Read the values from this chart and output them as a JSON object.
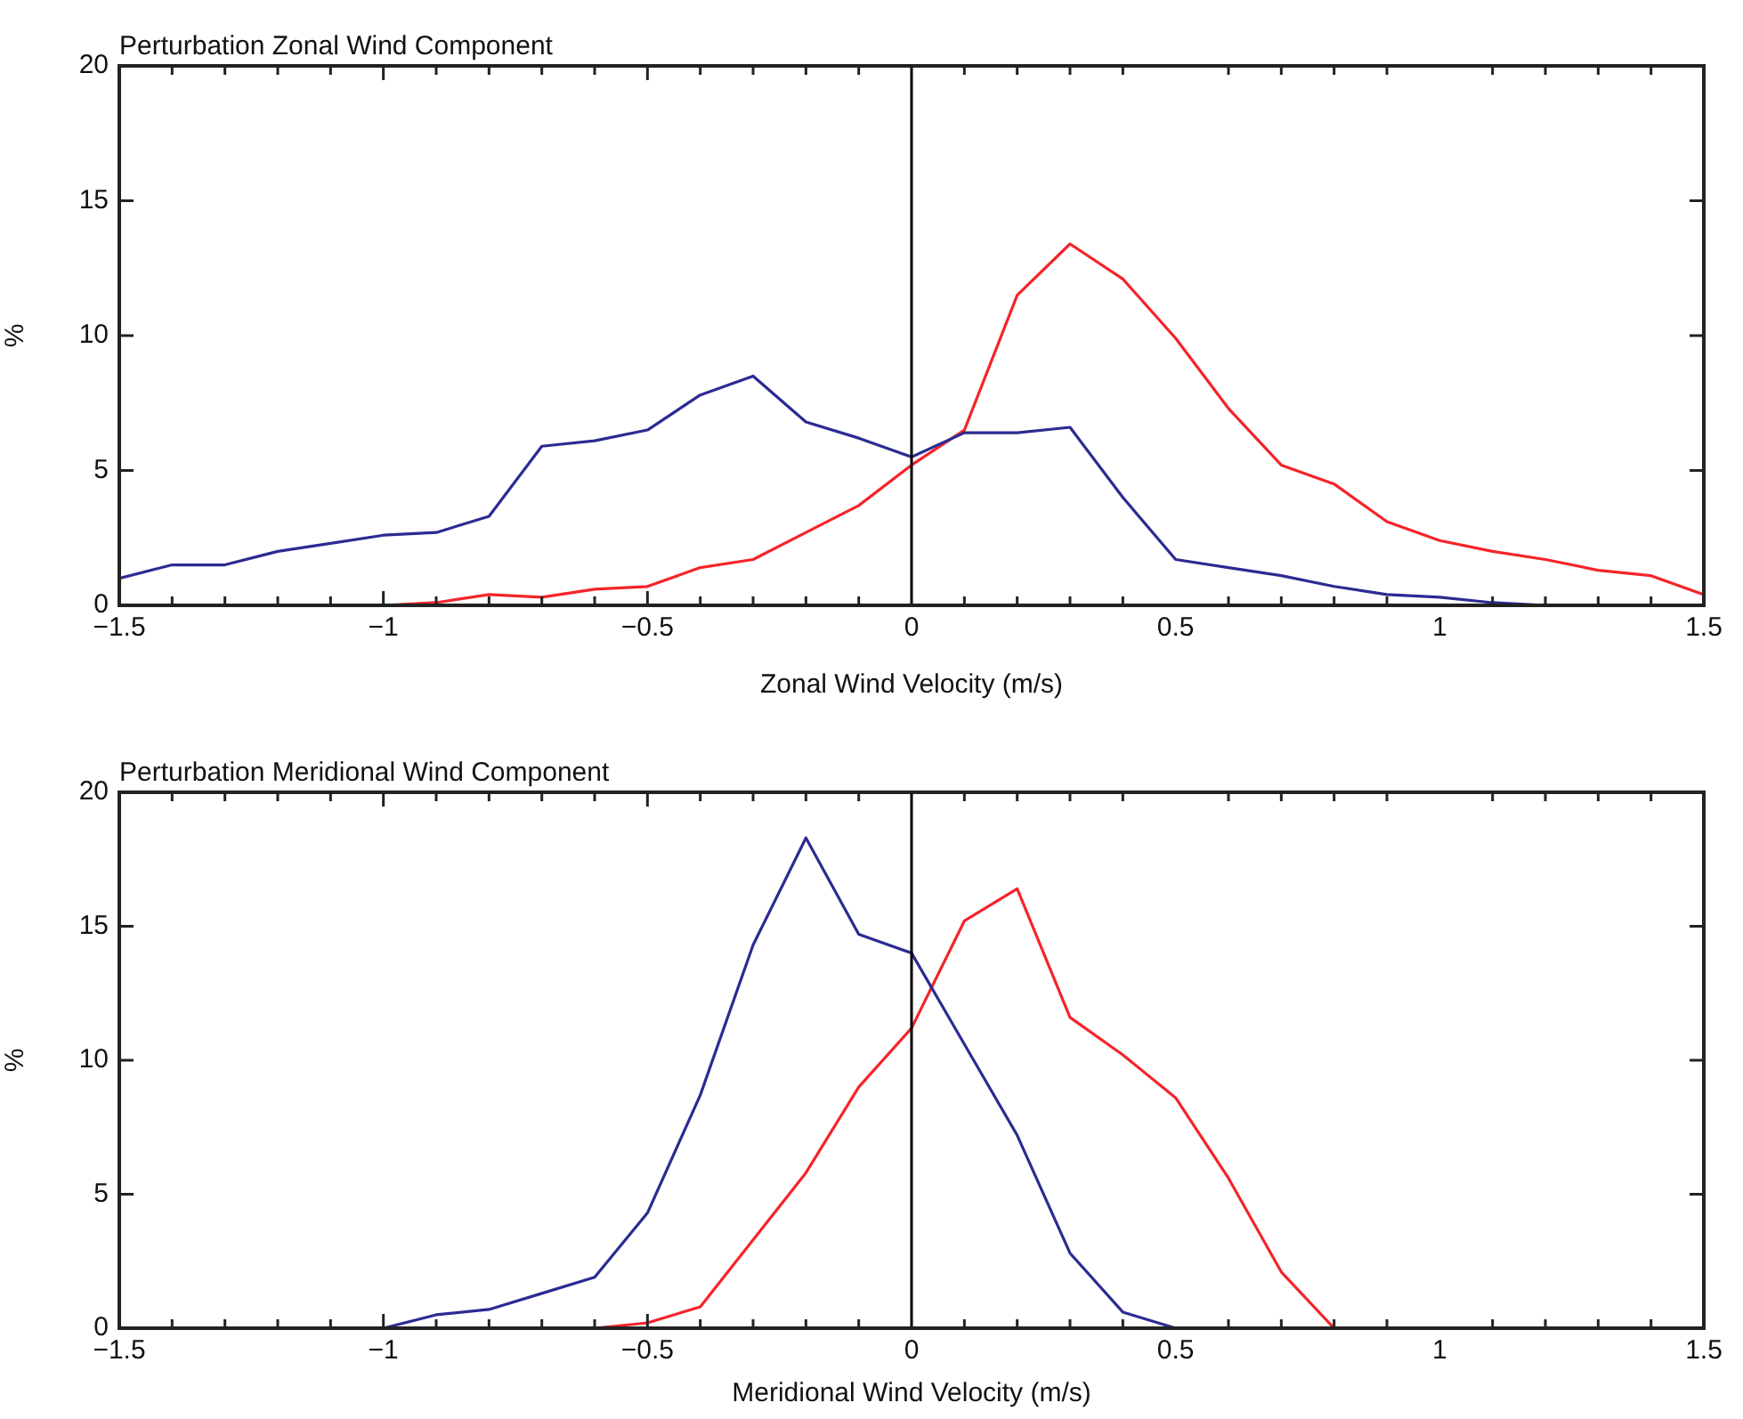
{
  "chart_data": [
    {
      "type": "line",
      "title": "Perturbation Zonal Wind Component",
      "xlabel": "Zonal Wind Velocity (m/s)",
      "ylabel": "%",
      "series": [
        {
          "color": "#2b2b92",
          "x": [
            -1.5,
            -1.4,
            -1.3,
            -1.2,
            -1.1,
            -1.0,
            -0.9,
            -0.8,
            -0.7,
            -0.6,
            -0.5,
            -0.4,
            -0.3,
            -0.2,
            -0.1,
            0,
            0.1,
            0.2,
            0.3,
            0.4,
            0.5,
            0.6,
            0.7,
            0.8,
            0.9,
            1.0,
            1.1,
            1.2
          ],
          "values": [
            1.0,
            1.5,
            1.5,
            2.0,
            2.3,
            2.6,
            2.7,
            3.3,
            5.9,
            6.1,
            6.5,
            7.8,
            8.5,
            6.8,
            6.2,
            5.5,
            6.4,
            6.4,
            6.6,
            4.0,
            1.7,
            1.4,
            1.1,
            0.7,
            0.4,
            0.3,
            0.1,
            0
          ]
        },
        {
          "color": "#f5242a",
          "x": [
            -1.0,
            -0.9,
            -0.8,
            -0.7,
            -0.6,
            -0.5,
            -0.4,
            -0.3,
            -0.2,
            -0.1,
            0,
            0.1,
            0.2,
            0.3,
            0.4,
            0.5,
            0.6,
            0.7,
            0.8,
            0.9,
            1.0,
            1.1,
            1.2,
            1.3,
            1.4,
            1.5
          ],
          "values": [
            0,
            0.1,
            0.4,
            0.3,
            0.6,
            0.7,
            1.4,
            1.7,
            2.7,
            3.7,
            5.2,
            6.5,
            11.5,
            13.4,
            12.1,
            9.9,
            7.3,
            5.2,
            4.5,
            3.1,
            2.4,
            2.0,
            1.7,
            1.3,
            1.1,
            0.4
          ]
        }
      ],
      "xlim": [
        -1.5,
        1.5
      ],
      "xticks": [
        {
          "value": -1.5,
          "label": "−1.5"
        },
        {
          "value": -1.4,
          "label": null
        },
        {
          "value": -1.3,
          "label": null
        },
        {
          "value": -1.2,
          "label": null
        },
        {
          "value": -1.1,
          "label": null
        },
        {
          "value": -1,
          "label": "−1"
        },
        {
          "value": -0.9,
          "label": null
        },
        {
          "value": -0.8,
          "label": null
        },
        {
          "value": -0.7,
          "label": null
        },
        {
          "value": -0.6,
          "label": null
        },
        {
          "value": -0.5,
          "label": "−0.5"
        },
        {
          "value": -0.4,
          "label": null
        },
        {
          "value": -0.3,
          "label": null
        },
        {
          "value": -0.2,
          "label": null
        },
        {
          "value": -0.1,
          "label": null
        },
        0,
        {
          "value": 0.1,
          "label": null
        },
        {
          "value": 0.2,
          "label": null
        },
        {
          "value": 0.3,
          "label": null
        },
        {
          "value": 0.4,
          "label": null
        },
        0.5,
        {
          "value": 0.6,
          "label": null
        },
        {
          "value": 0.7,
          "label": null
        },
        {
          "value": 0.8,
          "label": null
        },
        {
          "value": 0.9,
          "label": null
        },
        1,
        {
          "value": 1.1,
          "label": null
        },
        {
          "value": 1.2,
          "label": null
        },
        {
          "value": 1.3,
          "label": null
        },
        {
          "value": 1.4,
          "label": null
        },
        1.5
      ],
      "ylim": [
        0,
        20
      ],
      "yticks": [
        0,
        5,
        10,
        15,
        20
      ],
      "ref_lines": [
        {
          "axis": "x",
          "value": 0,
          "color": "#000000"
        }
      ],
      "grid": false,
      "legend": false,
      "marker": "none",
      "line_style": "solid"
    },
    {
      "type": "line",
      "title": "Perturbation Meridional Wind Component",
      "xlabel": "Meridional Wind Velocity (m/s)",
      "ylabel": "%",
      "series": [
        {
          "color": "#2b2b92",
          "x": [
            -1.0,
            -0.9,
            -0.8,
            -0.7,
            -0.6,
            -0.5,
            -0.4,
            -0.3,
            -0.2,
            -0.1,
            0,
            0.1,
            0.2,
            0.3,
            0.4,
            0.5
          ],
          "values": [
            0,
            0.5,
            0.7,
            1.3,
            1.9,
            4.3,
            8.7,
            14.3,
            18.3,
            14.7,
            14.0,
            10.6,
            7.2,
            2.8,
            0.6,
            0
          ]
        },
        {
          "color": "#f5242a",
          "x": [
            -0.6,
            -0.5,
            -0.4,
            -0.3,
            -0.2,
            -0.1,
            0,
            0.1,
            0.2,
            0.3,
            0.4,
            0.5,
            0.6,
            0.7,
            0.8
          ],
          "values": [
            0,
            0.2,
            0.8,
            3.3,
            5.8,
            9.0,
            11.2,
            15.2,
            16.4,
            11.6,
            10.2,
            8.6,
            5.6,
            2.1,
            0
          ]
        }
      ],
      "xlim": [
        -1.5,
        1.5
      ],
      "xticks": [
        {
          "value": -1.5,
          "label": "−1.5"
        },
        {
          "value": -1.4,
          "label": null
        },
        {
          "value": -1.3,
          "label": null
        },
        {
          "value": -1.2,
          "label": null
        },
        {
          "value": -1.1,
          "label": null
        },
        {
          "value": -1,
          "label": "−1"
        },
        {
          "value": -0.9,
          "label": null
        },
        {
          "value": -0.8,
          "label": null
        },
        {
          "value": -0.7,
          "label": null
        },
        {
          "value": -0.6,
          "label": null
        },
        {
          "value": -0.5,
          "label": "−0.5"
        },
        {
          "value": -0.4,
          "label": null
        },
        {
          "value": -0.3,
          "label": null
        },
        {
          "value": -0.2,
          "label": null
        },
        {
          "value": -0.1,
          "label": null
        },
        0,
        {
          "value": 0.1,
          "label": null
        },
        {
          "value": 0.2,
          "label": null
        },
        {
          "value": 0.3,
          "label": null
        },
        {
          "value": 0.4,
          "label": null
        },
        0.5,
        {
          "value": 0.6,
          "label": null
        },
        {
          "value": 0.7,
          "label": null
        },
        {
          "value": 0.8,
          "label": null
        },
        {
          "value": 0.9,
          "label": null
        },
        1,
        {
          "value": 1.1,
          "label": null
        },
        {
          "value": 1.2,
          "label": null
        },
        {
          "value": 1.3,
          "label": null
        },
        {
          "value": 1.4,
          "label": null
        },
        1.5
      ],
      "ylim": [
        0,
        20
      ],
      "yticks": [
        0,
        5,
        10,
        15,
        20
      ],
      "ref_lines": [
        {
          "axis": "x",
          "value": 0,
          "color": "#000000"
        }
      ],
      "grid": false,
      "legend": false,
      "marker": "none",
      "line_style": "solid"
    }
  ]
}
